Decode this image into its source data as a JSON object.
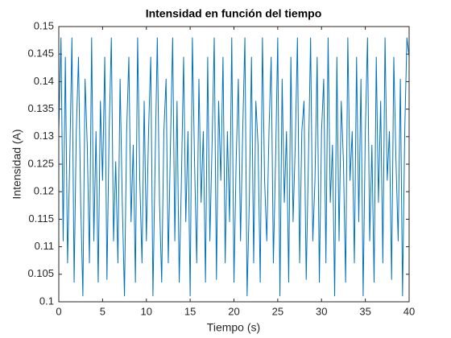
{
  "chart_data": {
    "type": "line",
    "title": "Intensidad en función del tiempo",
    "xlabel": "Tiempo (s)",
    "ylabel": "Intensidad (A)",
    "xlim": [
      0,
      40
    ],
    "ylim": [
      0.1,
      0.15
    ],
    "xticks": [
      0,
      5,
      10,
      15,
      20,
      25,
      30,
      35,
      40
    ],
    "yticks": [
      0.1,
      0.105,
      0.11,
      0.115,
      0.12,
      0.125,
      0.13,
      0.135,
      0.14,
      0.145,
      0.15
    ],
    "grid": false,
    "x": [
      0,
      0.25,
      0.5,
      0.75,
      1,
      1.25,
      1.5,
      1.75,
      2,
      2.25,
      2.5,
      2.75,
      3,
      3.25,
      3.5,
      3.75,
      4,
      4.25,
      4.5,
      4.75,
      5,
      5.25,
      5.5,
      5.75,
      6,
      6.25,
      6.5,
      6.75,
      7,
      7.25,
      7.5,
      7.75,
      8,
      8.25,
      8.5,
      8.75,
      9,
      9.25,
      9.5,
      9.75,
      10,
      10.25,
      10.5,
      10.75,
      11,
      11.25,
      11.5,
      11.75,
      12,
      12.25,
      12.5,
      12.75,
      13,
      13.25,
      13.5,
      13.75,
      14,
      14.25,
      14.5,
      14.75,
      15,
      15.25,
      15.5,
      15.75,
      16,
      16.25,
      16.5,
      16.75,
      17,
      17.25,
      17.5,
      17.75,
      18,
      18.25,
      18.5,
      18.75,
      19,
      19.25,
      19.5,
      19.75,
      20,
      20.25,
      20.5,
      20.75,
      21,
      21.25,
      21.5,
      21.75,
      22,
      22.25,
      22.5,
      22.75,
      23,
      23.25,
      23.5,
      23.75,
      24,
      24.25,
      24.5,
      24.75,
      25,
      25.25,
      25.5,
      25.75,
      26,
      26.25,
      26.5,
      26.75,
      27,
      27.25,
      27.5,
      27.75,
      28,
      28.25,
      28.5,
      28.75,
      29,
      29.25,
      29.5,
      29.75,
      30,
      30.25,
      30.5,
      30.75,
      31,
      31.25,
      31.5,
      31.75,
      32,
      32.25,
      32.5,
      32.75,
      33,
      33.25,
      33.5,
      33.75,
      34,
      34.25,
      34.5,
      34.75,
      35,
      35.25,
      35.5,
      35.75,
      36,
      36.25,
      36.5,
      36.75,
      37,
      37.25,
      37.5,
      37.75,
      38,
      38.25,
      38.5,
      38.75,
      39,
      39.25,
      39.5,
      39.75,
      40
    ],
    "series": [
      {
        "color": "#0072bd",
        "values": [
          0.131,
          0.148,
          0.111,
          0.1445,
          0.107,
          0.1255,
          0.148,
          0.1035,
          0.131,
          0.1445,
          0.118,
          0.101,
          0.1405,
          0.1285,
          0.107,
          0.148,
          0.111,
          0.131,
          0.1035,
          0.1365,
          0.122,
          0.1445,
          0.104,
          0.131,
          0.148,
          0.111,
          0.1255,
          0.107,
          0.1405,
          0.118,
          0.101,
          0.131,
          0.1445,
          0.1145,
          0.1285,
          0.1035,
          0.148,
          0.122,
          0.107,
          0.1365,
          0.111,
          0.131,
          0.1445,
          0.101,
          0.1255,
          0.148,
          0.118,
          0.1035,
          0.131,
          0.1405,
          0.107,
          0.1285,
          0.148,
          0.111,
          0.1365,
          0.1035,
          0.122,
          0.1445,
          0.1145,
          0.131,
          0.101,
          0.148,
          0.1255,
          0.107,
          0.1405,
          0.118,
          0.131,
          0.1035,
          0.1445,
          0.111,
          0.1285,
          0.148,
          0.104,
          0.1365,
          0.122,
          0.1445,
          0.107,
          0.131,
          0.1145,
          0.148,
          0.1035,
          0.1255,
          0.1405,
          0.111,
          0.131,
          0.148,
          0.101,
          0.118,
          0.1445,
          0.107,
          0.1365,
          0.1285,
          0.1035,
          0.148,
          0.122,
          0.111,
          0.131,
          0.1445,
          0.107,
          0.1255,
          0.148,
          0.101,
          0.1405,
          0.118,
          0.131,
          0.1035,
          0.1445,
          0.1145,
          0.1285,
          0.148,
          0.107,
          0.131,
          0.1365,
          0.104,
          0.1255,
          0.148,
          0.111,
          0.122,
          0.1445,
          0.1035,
          0.131,
          0.1405,
          0.107,
          0.148,
          0.118,
          0.1285,
          0.101,
          0.1445,
          0.111,
          0.1365,
          0.1255,
          0.1035,
          0.148,
          0.122,
          0.131,
          0.107,
          0.1445,
          0.1145,
          0.1405,
          0.101,
          0.131,
          0.148,
          0.111,
          0.1285,
          0.1035,
          0.1445,
          0.118,
          0.1365,
          0.107,
          0.148,
          0.122,
          0.131,
          0.104,
          0.1445,
          0.1255,
          0.111,
          0.1405,
          0.101,
          0.131,
          0.148,
          0.1445
        ]
      }
    ]
  }
}
